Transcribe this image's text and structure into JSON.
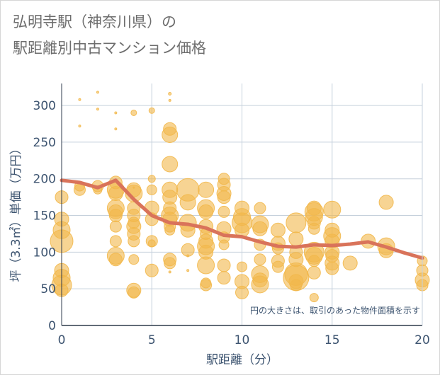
{
  "chart_data": {
    "type": "scatter",
    "title_lines": [
      "弘明寺駅（神奈川県）の",
      "駅距離別中古マンション価格"
    ],
    "xlabel": "駅距離（分）",
    "ylabel": "坪（3.3㎡）単価（万円）",
    "note": "円の大きさは、取引のあった物件面積を示す",
    "xlim": [
      0,
      20
    ],
    "ylim": [
      0,
      330
    ],
    "x_ticks": [
      "0",
      "5",
      "10",
      "15",
      "20"
    ],
    "y_ticks": [
      "0",
      "50",
      "100",
      "150",
      "200",
      "250",
      "300"
    ],
    "grid": true,
    "colors": {
      "bubble": "#f2b84b",
      "line": "#d9735a",
      "axis_text": "#3d5470",
      "grid": "#c5d0dc"
    },
    "points": [
      [
        0,
        175,
        9
      ],
      [
        0,
        145,
        10
      ],
      [
        0,
        130,
        12
      ],
      [
        0,
        115,
        16
      ],
      [
        0,
        75,
        10
      ],
      [
        0,
        65,
        12
      ],
      [
        0,
        55,
        14
      ],
      [
        0,
        48,
        9
      ],
      [
        1,
        308,
        1.5
      ],
      [
        1,
        272,
        1.5
      ],
      [
        1,
        190,
        7
      ],
      [
        1,
        185,
        8
      ],
      [
        2,
        318,
        1.5
      ],
      [
        2,
        295,
        1.5
      ],
      [
        2,
        190,
        8
      ],
      [
        2,
        185,
        6
      ],
      [
        3,
        290,
        1.5
      ],
      [
        3,
        268,
        1.5
      ],
      [
        3,
        195,
        9
      ],
      [
        3,
        185,
        12
      ],
      [
        3,
        180,
        10
      ],
      [
        3,
        160,
        12
      ],
      [
        3,
        155,
        10
      ],
      [
        3,
        150,
        9
      ],
      [
        3,
        135,
        8
      ],
      [
        3,
        115,
        8
      ],
      [
        3,
        95,
        12
      ],
      [
        3,
        90,
        9
      ],
      [
        4,
        290,
        4
      ],
      [
        4,
        188,
        1
      ],
      [
        4,
        185,
        10
      ],
      [
        4,
        180,
        12
      ],
      [
        4,
        160,
        9
      ],
      [
        4,
        150,
        9
      ],
      [
        4,
        140,
        8
      ],
      [
        4,
        135,
        10
      ],
      [
        4,
        125,
        9
      ],
      [
        4,
        115,
        8
      ],
      [
        4,
        90,
        7
      ],
      [
        4,
        48,
        10
      ],
      [
        4,
        45,
        8
      ],
      [
        5,
        293,
        4
      ],
      [
        5,
        200,
        5
      ],
      [
        5,
        185,
        7
      ],
      [
        5,
        160,
        10
      ],
      [
        5,
        145,
        9
      ],
      [
        5,
        115,
        8
      ],
      [
        5,
        112,
        5
      ],
      [
        5,
        75,
        9
      ],
      [
        6,
        316,
        2
      ],
      [
        6,
        307,
        1.5
      ],
      [
        6,
        268,
        9
      ],
      [
        6,
        260,
        11
      ],
      [
        6,
        220,
        11
      ],
      [
        6,
        185,
        11
      ],
      [
        6,
        175,
        10
      ],
      [
        6,
        160,
        9
      ],
      [
        6,
        150,
        12
      ],
      [
        6,
        145,
        10
      ],
      [
        6,
        135,
        8
      ],
      [
        6,
        130,
        7
      ],
      [
        6,
        90,
        9
      ],
      [
        6,
        85,
        8
      ],
      [
        6,
        73,
        1.5
      ],
      [
        7,
        185,
        16
      ],
      [
        7,
        168,
        11
      ],
      [
        7,
        140,
        12
      ],
      [
        7,
        130,
        10
      ],
      [
        7,
        103,
        9
      ],
      [
        7,
        95,
        1.5
      ],
      [
        7,
        75,
        1.5
      ],
      [
        8,
        185,
        11
      ],
      [
        8,
        160,
        12
      ],
      [
        8,
        155,
        10
      ],
      [
        8,
        135,
        10
      ],
      [
        8,
        125,
        8
      ],
      [
        8,
        115,
        10
      ],
      [
        8,
        108,
        12
      ],
      [
        8,
        100,
        10
      ],
      [
        8,
        82,
        12
      ],
      [
        8,
        58,
        7
      ],
      [
        8,
        55,
        8
      ],
      [
        9,
        200,
        8
      ],
      [
        9,
        192,
        9
      ],
      [
        9,
        180,
        10
      ],
      [
        9,
        175,
        9
      ],
      [
        9,
        155,
        8
      ],
      [
        9,
        132,
        10
      ],
      [
        9,
        120,
        8
      ],
      [
        9,
        110,
        7
      ],
      [
        9,
        82,
        9
      ],
      [
        9,
        65,
        9
      ],
      [
        10,
        160,
        10
      ],
      [
        10,
        148,
        12
      ],
      [
        10,
        140,
        14
      ],
      [
        10,
        130,
        10
      ],
      [
        10,
        80,
        7
      ],
      [
        10,
        60,
        10
      ],
      [
        10,
        45,
        9
      ],
      [
        11,
        160,
        8
      ],
      [
        11,
        138,
        12
      ],
      [
        11,
        132,
        10
      ],
      [
        11,
        110,
        8
      ],
      [
        11,
        90,
        8
      ],
      [
        11,
        70,
        12
      ],
      [
        11,
        62,
        10
      ],
      [
        11,
        56,
        12
      ],
      [
        12,
        130,
        10
      ],
      [
        12,
        112,
        10
      ],
      [
        12,
        105,
        8
      ],
      [
        12,
        88,
        9
      ],
      [
        12,
        80,
        8
      ],
      [
        13,
        140,
        14
      ],
      [
        13,
        118,
        10
      ],
      [
        13,
        100,
        9
      ],
      [
        13,
        90,
        10
      ],
      [
        13,
        70,
        16
      ],
      [
        13,
        65,
        18
      ],
      [
        13,
        60,
        10
      ],
      [
        13,
        55,
        8
      ],
      [
        14,
        160,
        10
      ],
      [
        14,
        155,
        13
      ],
      [
        14,
        148,
        12
      ],
      [
        14,
        140,
        9
      ],
      [
        14,
        132,
        8
      ],
      [
        14,
        100,
        14
      ],
      [
        14,
        95,
        12
      ],
      [
        14,
        88,
        8
      ],
      [
        14,
        72,
        9
      ],
      [
        14,
        38,
        6
      ],
      [
        15,
        158,
        12
      ],
      [
        15,
        130,
        10
      ],
      [
        15,
        122,
        12
      ],
      [
        15,
        115,
        10
      ],
      [
        15,
        100,
        10
      ],
      [
        15,
        95,
        9
      ],
      [
        15,
        85,
        10
      ],
      [
        15,
        78,
        9
      ],
      [
        16,
        85,
        10
      ],
      [
        17,
        115,
        10
      ],
      [
        18,
        168,
        10
      ],
      [
        18,
        108,
        12
      ],
      [
        18,
        102,
        10
      ],
      [
        20,
        88,
        7
      ],
      [
        20,
        75,
        8
      ],
      [
        20,
        62,
        10
      ],
      [
        20,
        55,
        8
      ]
    ],
    "avg_line": [
      [
        0,
        198
      ],
      [
        1,
        195
      ],
      [
        2,
        188
      ],
      [
        3,
        198
      ],
      [
        4,
        172
      ],
      [
        5,
        150
      ],
      [
        6,
        140
      ],
      [
        7,
        138
      ],
      [
        8,
        133
      ],
      [
        9,
        123
      ],
      [
        10,
        121
      ],
      [
        11,
        114
      ],
      [
        12,
        108
      ],
      [
        13,
        107
      ],
      [
        14,
        110
      ],
      [
        15,
        109
      ],
      [
        16,
        111
      ],
      [
        17,
        114
      ],
      [
        18,
        107
      ],
      [
        19,
        99
      ],
      [
        20,
        92
      ]
    ]
  }
}
